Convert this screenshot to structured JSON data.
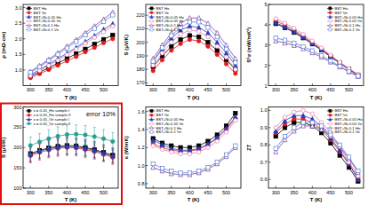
{
  "chart_data": [
    {
      "type": "line",
      "x_label": "T (K)",
      "y_label": "ρ (mΩ·cm)",
      "grid": false,
      "legend": "upper left",
      "x": [
        300,
        325,
        350,
        375,
        400,
        425,
        450,
        475,
        500,
        525
      ],
      "xlim": [
        280,
        540
      ],
      "xticks": [
        300,
        350,
        400,
        450,
        500
      ],
      "ylim": [
        0.5,
        3.1
      ],
      "yticks": [
        {
          "value": 1,
          "label": "1.0"
        },
        {
          "value": 1.5,
          "label": "1.5"
        },
        {
          "value": 2,
          "label": "2.0"
        },
        {
          "value": 2.5,
          "label": "2.5"
        },
        {
          "value": 3,
          "label": "3.0"
        }
      ],
      "series": [
        {
          "name": "BST Ho",
          "color": "#000000",
          "marker": "square",
          "line_style": "solid",
          "values": [
            0.8,
            0.93,
            1.07,
            1.22,
            1.37,
            1.52,
            1.67,
            1.83,
            1.98,
            2.12
          ]
        },
        {
          "name": "BST Ve",
          "color": "#e41a1c",
          "marker": "circle",
          "line_style": "solid",
          "values": [
            0.75,
            0.88,
            1.01,
            1.15,
            1.29,
            1.43,
            1.58,
            1.72,
            1.87,
            2.0
          ]
        },
        {
          "name": "BST+Ni-0.05 Ho",
          "color": "#1f3fbf",
          "marker": "triangle",
          "line_style": "solid",
          "values": [
            0.85,
            1.01,
            1.18,
            1.36,
            1.54,
            1.72,
            1.91,
            2.1,
            2.3,
            2.48
          ]
        },
        {
          "name": "BST+Ni-0.05 Ve",
          "color": "#e87aa8",
          "marker": "circle-open",
          "line_style": "solid",
          "values": [
            0.82,
            0.98,
            1.14,
            1.31,
            1.49,
            1.67,
            1.85,
            2.04,
            2.22,
            2.4
          ]
        },
        {
          "name": "BST+Ni-0.1 Ho",
          "color": "#7b3fa0",
          "marker": "triangle-open",
          "line_style": "solid",
          "values": [
            0.95,
            1.14,
            1.34,
            1.55,
            1.76,
            1.97,
            2.19,
            2.41,
            2.63,
            2.85
          ]
        },
        {
          "name": "BST+Ni-0.1 Ve",
          "color": "#5a7fd0",
          "marker": "square-open",
          "line_style": "solid",
          "values": [
            0.92,
            1.1,
            1.3,
            1.5,
            1.7,
            1.91,
            2.12,
            2.33,
            2.55,
            2.76
          ]
        }
      ]
    },
    {
      "type": "line",
      "x_label": "T (K)",
      "y_label": "S (μV/K)",
      "grid": false,
      "legend": "upper left",
      "x": [
        300,
        325,
        350,
        375,
        400,
        425,
        450,
        475,
        500,
        525
      ],
      "xlim": [
        280,
        540
      ],
      "xticks": [
        300,
        350,
        400,
        450,
        500
      ],
      "ylim": [
        168,
        228
      ],
      "yticks": [
        170,
        180,
        190,
        200,
        210,
        220
      ],
      "series": [
        {
          "name": "BST Ho",
          "color": "#000000",
          "marker": "square",
          "line_style": "solid",
          "values": [
            182,
            190,
            197,
            202,
            205,
            204,
            200,
            194,
            187,
            180
          ]
        },
        {
          "name": "BST Ve",
          "color": "#e41a1c",
          "marker": "circle",
          "line_style": "solid",
          "values": [
            179,
            187,
            194,
            199,
            202,
            201,
            197,
            191,
            184,
            177
          ]
        },
        {
          "name": "BST+Ni-0.05 Ho",
          "color": "#1f3fbf",
          "marker": "triangle",
          "line_style": "solid",
          "values": [
            186,
            195,
            203,
            209,
            212,
            211,
            207,
            200,
            192,
            183
          ]
        },
        {
          "name": "BST+Ni-0.05 Ve",
          "color": "#e87aa8",
          "marker": "circle-open",
          "line_style": "solid",
          "values": [
            183,
            192,
            200,
            206,
            209,
            208,
            204,
            197,
            189,
            180
          ]
        },
        {
          "name": "BST+Ni-0.1 Ho",
          "color": "#7b3fa0",
          "marker": "triangle-open",
          "line_style": "solid",
          "values": [
            188,
            198,
            207,
            214,
            218,
            218,
            214,
            207,
            198,
            188
          ]
        },
        {
          "name": "BST+Ni-0.1 Ve",
          "color": "#5a7fd0",
          "marker": "square-open",
          "line_style": "solid",
          "values": [
            186,
            196,
            205,
            211,
            215,
            215,
            211,
            204,
            195,
            185
          ]
        }
      ]
    },
    {
      "type": "line",
      "x_label": "T (K)",
      "y_label": "S²σ (mW/mK²)",
      "grid": false,
      "legend": "upper right",
      "x": [
        300,
        325,
        350,
        375,
        400,
        425,
        450,
        475,
        500,
        525
      ],
      "xlim": [
        280,
        540
      ],
      "xticks": [
        300,
        350,
        400,
        450,
        500
      ],
      "ylim": [
        1,
        5
      ],
      "yticks": [
        1,
        2,
        3,
        4,
        5
      ],
      "series": [
        {
          "name": "BST Ho",
          "color": "#000000",
          "marker": "square",
          "line_style": "solid",
          "values": [
            4.05,
            3.85,
            3.62,
            3.35,
            3.05,
            2.75,
            2.42,
            2.12,
            1.82,
            1.52
          ]
        },
        {
          "name": "BST Ve",
          "color": "#e41a1c",
          "marker": "circle",
          "line_style": "solid",
          "values": [
            4.2,
            3.98,
            3.73,
            3.44,
            3.12,
            2.8,
            2.46,
            2.14,
            1.82,
            1.55
          ]
        },
        {
          "name": "BST+Ni-0.05 Ho",
          "color": "#1f3fbf",
          "marker": "triangle",
          "line_style": "solid",
          "values": [
            4.1,
            3.9,
            3.66,
            3.38,
            3.08,
            2.76,
            2.43,
            2.1,
            1.79,
            1.5
          ]
        },
        {
          "name": "BST+Ni-0.05 Ve",
          "color": "#e87aa8",
          "marker": "circle-open",
          "line_style": "solid",
          "values": [
            4.3,
            4.08,
            3.83,
            3.53,
            3.2,
            2.86,
            2.51,
            2.16,
            1.84,
            1.55
          ]
        },
        {
          "name": "BST+Ni-0.1 Ho",
          "color": "#7b3fa0",
          "marker": "triangle-open",
          "line_style": "solid",
          "values": [
            3.2,
            3.1,
            2.98,
            2.82,
            2.62,
            2.4,
            2.16,
            1.92,
            1.68,
            1.45
          ]
        },
        {
          "name": "BST+Ni-0.1 Ve",
          "color": "#5a7fd0",
          "marker": "square-open",
          "line_style": "solid",
          "values": [
            3.35,
            3.24,
            3.1,
            2.93,
            2.72,
            2.48,
            2.22,
            1.96,
            1.7,
            1.47
          ]
        }
      ]
    },
    {
      "type": "line",
      "x_label": "T (K)",
      "y_label": "S (μV/K)",
      "grid": false,
      "legend": "upper left",
      "annotation": "error 10%",
      "x": [
        300,
        325,
        350,
        375,
        400,
        425,
        450,
        475,
        500,
        525
      ],
      "xlim": [
        280,
        540
      ],
      "xticks": [
        300,
        350,
        400,
        450,
        500
      ],
      "ylim": [
        100,
        300
      ],
      "yticks": [
        100,
        150,
        200,
        250,
        300
      ],
      "series": [
        {
          "name": "x = 0.05_Ho sample I",
          "color": "#000000",
          "marker": "square",
          "line_style": "solid",
          "values": [
            185,
            193,
            199,
            203,
            205,
            204,
            200,
            195,
            188,
            181
          ],
          "errors": [
            19,
            19,
            20,
            20,
            21,
            20,
            20,
            20,
            19,
            18
          ]
        },
        {
          "name": "x = 0.05_Ho sample II",
          "color": "#e41a1c",
          "marker": "circle",
          "line_style": "solid",
          "values": [
            180,
            188,
            194,
            198,
            200,
            199,
            195,
            190,
            183,
            176
          ],
          "errors": [
            18,
            19,
            19,
            20,
            20,
            20,
            20,
            19,
            18,
            18
          ]
        },
        {
          "name": "x = 0.05_Ve sample I",
          "color": "#1f3fbf",
          "marker": "triangle",
          "line_style": "solid",
          "values": [
            183,
            191,
            197,
            201,
            203,
            202,
            198,
            193,
            186,
            179
          ],
          "errors": [
            18,
            19,
            20,
            20,
            20,
            20,
            20,
            19,
            19,
            18
          ]
        },
        {
          "name": "x = 0.05_Ve sample II",
          "color": "#2a9d8f",
          "marker": "circle",
          "line_style": "solid",
          "values": [
            205,
            214,
            222,
            228,
            232,
            233,
            231,
            227,
            222,
            215
          ],
          "errors": [
            21,
            21,
            22,
            23,
            23,
            23,
            23,
            23,
            22,
            22
          ]
        }
      ]
    },
    {
      "type": "line",
      "x_label": "T (K)",
      "y_label": "κ (W/mK)",
      "grid": false,
      "legend": "upper left",
      "x": [
        300,
        325,
        350,
        375,
        400,
        425,
        450,
        475,
        500,
        525
      ],
      "xlim": [
        280,
        540
      ],
      "xticks": [
        300,
        350,
        400,
        450,
        500
      ],
      "ylim": [
        0.75,
        1.65
      ],
      "yticks": [
        0.8,
        {
          "value": 1,
          "label": "1.0"
        },
        1.2,
        1.4,
        1.6
      ],
      "series": [
        {
          "name": "BST Ho",
          "color": "#000000",
          "marker": "square",
          "line_style": "solid",
          "values": [
            1.3,
            1.25,
            1.22,
            1.2,
            1.2,
            1.22,
            1.27,
            1.34,
            1.44,
            1.58
          ]
        },
        {
          "name": "BST Ve",
          "color": "#e41a1c",
          "marker": "circle",
          "line_style": "solid",
          "values": [
            1.24,
            1.2,
            1.17,
            1.16,
            1.16,
            1.18,
            1.23,
            1.3,
            1.4,
            1.52
          ]
        },
        {
          "name": "BST+Ni-0.05 Ho",
          "color": "#1f3fbf",
          "marker": "triangle",
          "line_style": "solid",
          "values": [
            1.28,
            1.23,
            1.19,
            1.17,
            1.17,
            1.19,
            1.24,
            1.31,
            1.41,
            1.54
          ]
        },
        {
          "name": "BST+Ni-0.05 Ve",
          "color": "#e87aa8",
          "marker": "circle-open",
          "line_style": "solid",
          "values": [
            1.22,
            1.18,
            1.15,
            1.13,
            1.13,
            1.15,
            1.2,
            1.27,
            1.37,
            1.5
          ]
        },
        {
          "name": "BST+Ni-0.1 Ho",
          "color": "#7b3fa0",
          "marker": "triangle-open",
          "line_style": "solid",
          "values": [
            0.98,
            0.94,
            0.91,
            0.9,
            0.9,
            0.92,
            0.96,
            1.02,
            1.1,
            1.2
          ]
        },
        {
          "name": "BST+Ni-0.1 Ve",
          "color": "#5a7fd0",
          "marker": "square-open",
          "line_style": "solid",
          "values": [
            1.02,
            0.97,
            0.94,
            0.92,
            0.92,
            0.94,
            0.98,
            1.04,
            1.12,
            1.22
          ]
        }
      ]
    },
    {
      "type": "line",
      "x_label": "T (K)",
      "y_label": "ZT",
      "grid": false,
      "legend": "upper right",
      "x": [
        300,
        325,
        350,
        375,
        400,
        425,
        450,
        475,
        500,
        525
      ],
      "xlim": [
        280,
        540
      ],
      "xticks": [
        300,
        350,
        400,
        450,
        500
      ],
      "ylim": [
        0.55,
        1.02
      ],
      "yticks": [
        0.6,
        0.7,
        0.8,
        0.9,
        {
          "value": 1,
          "label": "1.0"
        }
      ],
      "series": [
        {
          "name": "BST Ho",
          "color": "#000000",
          "marker": "square",
          "line_style": "solid",
          "values": [
            0.85,
            0.9,
            0.93,
            0.93,
            0.91,
            0.87,
            0.81,
            0.74,
            0.67,
            0.59
          ]
        },
        {
          "name": "BST Ve",
          "color": "#e41a1c",
          "marker": "circle",
          "line_style": "solid",
          "values": [
            0.87,
            0.92,
            0.95,
            0.95,
            0.93,
            0.89,
            0.83,
            0.76,
            0.69,
            0.61
          ]
        },
        {
          "name": "BST+Ni-0.05 Ho",
          "color": "#1f3fbf",
          "marker": "triangle",
          "line_style": "solid",
          "values": [
            0.88,
            0.94,
            0.97,
            0.97,
            0.95,
            0.91,
            0.84,
            0.77,
            0.69,
            0.6
          ]
        },
        {
          "name": "BST+Ni-0.05 Ve",
          "color": "#e87aa8",
          "marker": "circle-open",
          "line_style": "solid",
          "values": [
            0.9,
            0.96,
            0.99,
            1.0,
            0.98,
            0.93,
            0.87,
            0.79,
            0.7,
            0.62
          ]
        },
        {
          "name": "BST+Ni-0.1 Ho",
          "color": "#7b3fa0",
          "marker": "triangle-open",
          "line_style": "solid",
          "values": [
            0.76,
            0.83,
            0.88,
            0.91,
            0.91,
            0.89,
            0.85,
            0.79,
            0.72,
            0.64
          ]
        },
        {
          "name": "BST+Ni-0.1 Ve",
          "color": "#5a7fd0",
          "marker": "square-open",
          "line_style": "solid",
          "values": [
            0.78,
            0.85,
            0.9,
            0.93,
            0.93,
            0.91,
            0.86,
            0.8,
            0.73,
            0.65
          ]
        }
      ]
    }
  ]
}
